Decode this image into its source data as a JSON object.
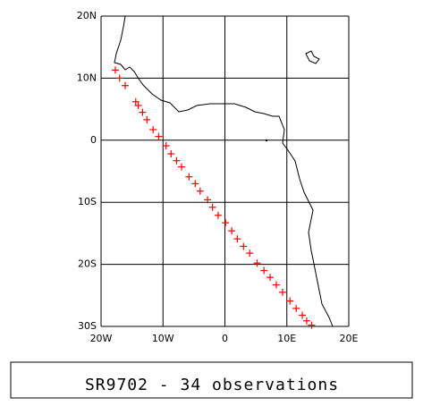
{
  "chart_data": {
    "type": "scatter",
    "title": "SR9702 - 34 observations",
    "x": [
      -17.7,
      -17.0,
      -16.1,
      -14.4,
      -14.0,
      -13.3,
      -12.6,
      -11.6,
      -10.7,
      -9.5,
      -8.7,
      -7.8,
      -7.0,
      -5.8,
      -4.8,
      -4.0,
      -2.8,
      -2.0,
      -1.1,
      0.1,
      1.1,
      2.0,
      3.0,
      4.0,
      5.2,
      6.3,
      7.3,
      8.3,
      9.3,
      10.5,
      11.5,
      12.5,
      13.2,
      14.0
    ],
    "values": [
      11.3,
      10.0,
      8.8,
      6.2,
      5.6,
      4.5,
      3.3,
      1.7,
      0.6,
      -0.9,
      -2.2,
      -3.3,
      -4.3,
      -5.9,
      -7.0,
      -8.2,
      -9.6,
      -10.8,
      -12.1,
      -13.3,
      -14.6,
      -15.9,
      -17.1,
      -18.2,
      -19.8,
      -21.0,
      -22.1,
      -23.3,
      -24.5,
      -25.9,
      -27.1,
      -28.2,
      -29.1,
      -29.8
    ],
    "color": "#ff0000",
    "xlim": [
      -20,
      20
    ],
    "xticks": [
      {
        "value": -20,
        "label": "20W"
      },
      {
        "value": -10,
        "label": "10W"
      },
      {
        "value": 0,
        "label": "0"
      },
      {
        "value": 10,
        "label": "10E"
      },
      {
        "value": 20,
        "label": "20E"
      }
    ],
    "ylim": [
      -30,
      20
    ],
    "yticks": [
      {
        "value": 20,
        "label": "20N"
      },
      {
        "value": 10,
        "label": "10N"
      },
      {
        "value": 0,
        "label": "0"
      },
      {
        "value": -10,
        "label": "10S"
      },
      {
        "value": -20,
        "label": "20S"
      },
      {
        "value": -30,
        "label": "30S"
      }
    ],
    "grid": true
  }
}
